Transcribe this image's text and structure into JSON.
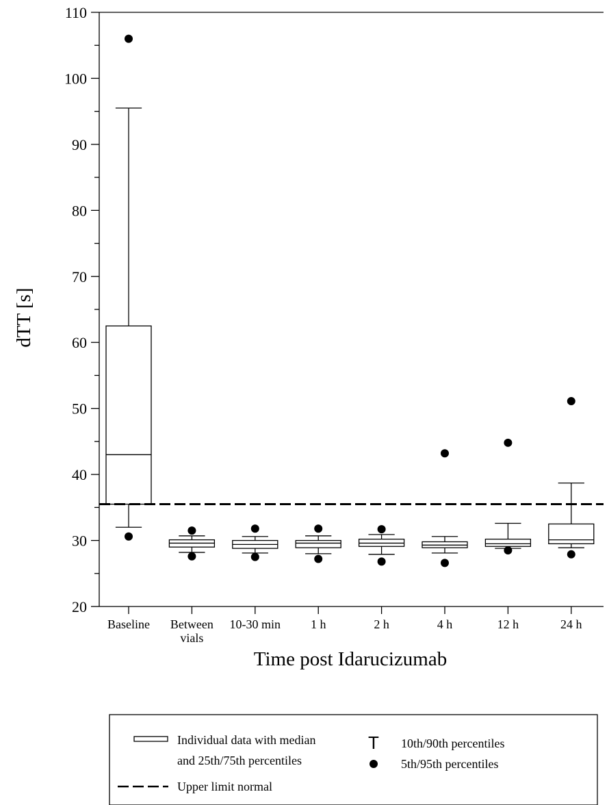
{
  "chart_data": {
    "type": "box",
    "title": "",
    "xlabel": "Time post Idarucizumab",
    "ylabel": "dTT [s]",
    "ylim": [
      20,
      110
    ],
    "yticks": [
      20,
      30,
      40,
      50,
      60,
      70,
      80,
      90,
      100,
      110
    ],
    "categories": [
      [
        "Baseline"
      ],
      [
        "Between",
        "vials"
      ],
      [
        "10-30 min"
      ],
      [
        "1 h"
      ],
      [
        "2 h"
      ],
      [
        "4 h"
      ],
      [
        "12 h"
      ],
      [
        "24 h"
      ]
    ],
    "boxes": [
      {
        "p5": 30.6,
        "p10": 32.0,
        "q1": 35.5,
        "median": 43.0,
        "q3": 62.5,
        "p90": 95.5,
        "p95": 106.0
      },
      {
        "p5": 27.6,
        "p10": 28.2,
        "q1": 29.0,
        "median": 29.6,
        "q3": 30.1,
        "p90": 30.7,
        "p95": 31.5
      },
      {
        "p5": 27.5,
        "p10": 28.1,
        "q1": 28.8,
        "median": 29.4,
        "q3": 30.0,
        "p90": 30.6,
        "p95": 31.8
      },
      {
        "p5": 27.2,
        "p10": 28.0,
        "q1": 28.9,
        "median": 29.6,
        "q3": 30.0,
        "p90": 30.7,
        "p95": 31.8
      },
      {
        "p5": 26.8,
        "p10": 27.9,
        "q1": 29.1,
        "median": 29.6,
        "q3": 30.2,
        "p90": 30.9,
        "p95": 31.7
      },
      {
        "p5": 26.6,
        "p10": 28.1,
        "q1": 28.9,
        "median": 29.3,
        "q3": 29.8,
        "p90": 30.6,
        "p95": 43.2
      },
      {
        "p5": 28.5,
        "p10": 28.8,
        "q1": 29.1,
        "median": 29.5,
        "q3": 30.2,
        "p90": 32.6,
        "p95": 44.8
      },
      {
        "p5": 27.9,
        "p10": 28.9,
        "q1": 29.5,
        "median": 30.1,
        "q3": 32.5,
        "p90": 38.7,
        "p95": 51.1
      }
    ],
    "reference_line": {
      "value": 35.5,
      "label": "Upper limit normal",
      "style": "dashed"
    },
    "grid": false,
    "legend_position": "bottom",
    "legend": {
      "box_line1": "Individual data with median",
      "box_line2": "and 25th/75th percentiles",
      "reference": "Upper limit normal",
      "whisker_symbol": "T",
      "whisker": "10th/90th percentiles",
      "outlier": "5th/95th percentiles"
    },
    "colors": {
      "stroke": "#000000",
      "box_fill": "#ffffff"
    }
  }
}
